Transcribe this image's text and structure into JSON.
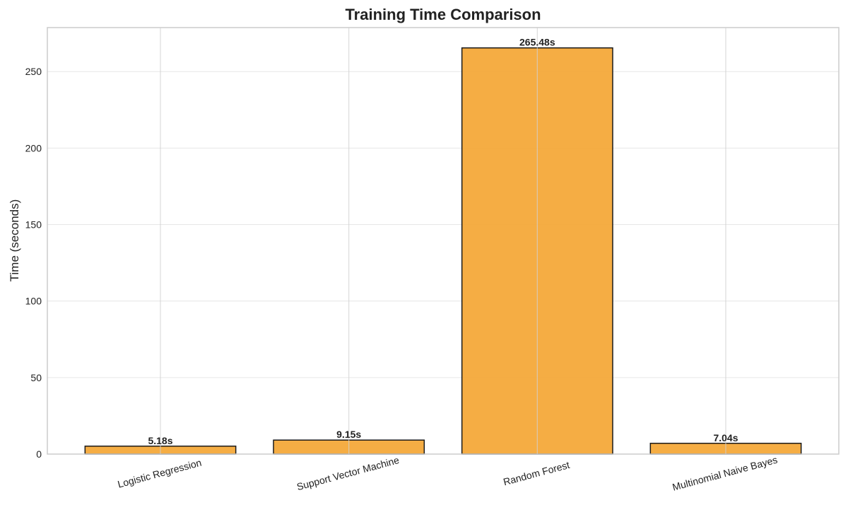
{
  "chart_data": {
    "type": "bar",
    "title": "Training Time Comparison",
    "xlabel": "",
    "ylabel": "Time (seconds)",
    "categories": [
      "Logistic Regression",
      "Support Vector Machine",
      "Random Forest",
      "Multinomial Naive Bayes"
    ],
    "values": [
      5.18,
      9.15,
      265.48,
      7.04
    ],
    "data_labels": [
      "5.18s",
      "9.15s",
      "265.48s",
      "7.04s"
    ],
    "ylim": [
      0,
      278.75
    ],
    "yticks": [
      0,
      50,
      100,
      150,
      200,
      250
    ],
    "grid": true,
    "bar_color": "#f4a93a",
    "bar_edge_color": "#1a1a1a"
  }
}
